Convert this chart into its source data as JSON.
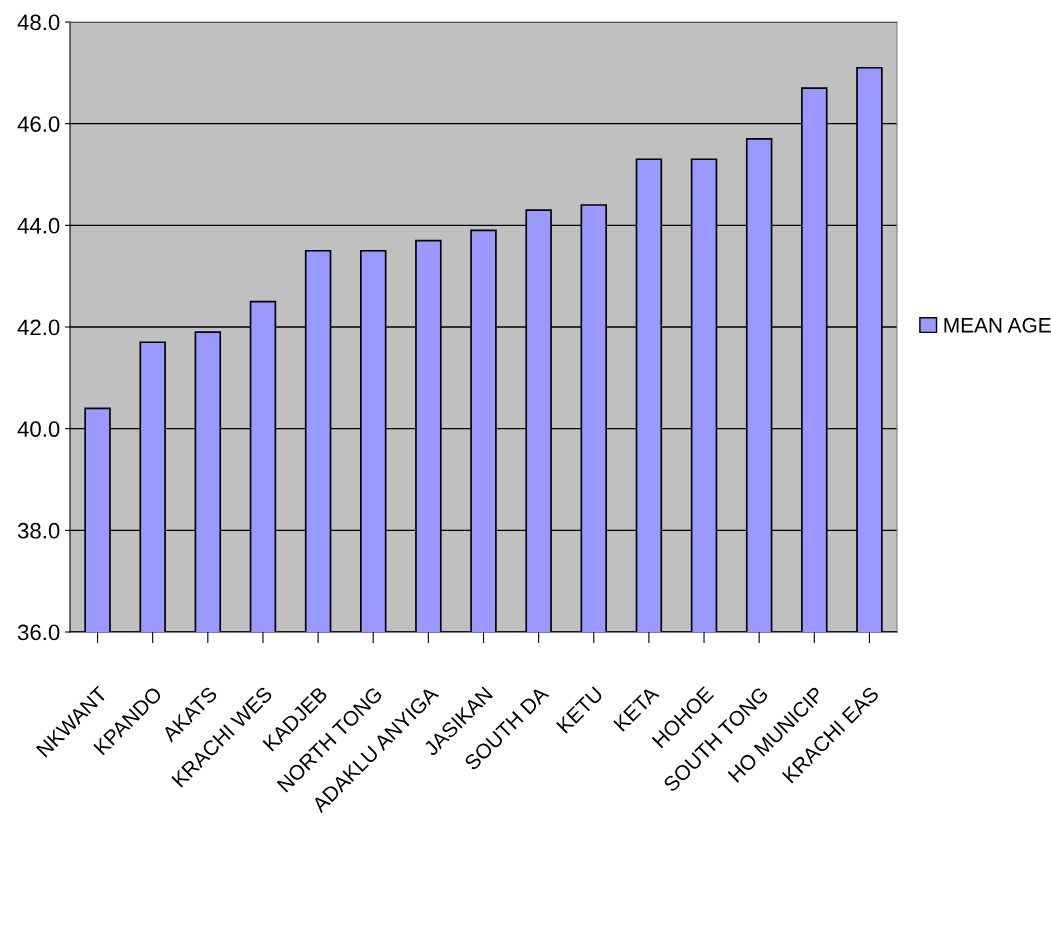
{
  "chart_data": {
    "type": "bar",
    "categories": [
      "NKWANT",
      "KPANDO",
      "AKATS",
      "KRACHI WES",
      "KADJEB",
      "NORTH TONG",
      "ADAKLU ANYIGA",
      "JASIKAN",
      "SOUTH DA",
      "KETU",
      "KETA",
      "HOHOE",
      "SOUTH TONG",
      "HO MUNICIP",
      "KRACHI EAS"
    ],
    "series": [
      {
        "name": "MEAN AGE",
        "color": "#9999ff",
        "values": [
          40.4,
          41.7,
          41.9,
          42.5,
          43.5,
          43.5,
          43.7,
          43.9,
          44.3,
          44.4,
          45.3,
          45.3,
          45.7,
          46.7,
          47.1
        ]
      }
    ],
    "ylim": [
      36,
      48
    ],
    "yticks": [
      {
        "value": 36,
        "label": "36.0"
      },
      {
        "value": 38,
        "label": "38.0"
      },
      {
        "value": 40,
        "label": "40.0"
      },
      {
        "value": 42,
        "label": "42.0"
      },
      {
        "value": 44,
        "label": "44.0"
      },
      {
        "value": 46,
        "label": "46.0"
      },
      {
        "value": 48,
        "label": "48.0"
      }
    ],
    "grid": "y",
    "legend": "right"
  }
}
